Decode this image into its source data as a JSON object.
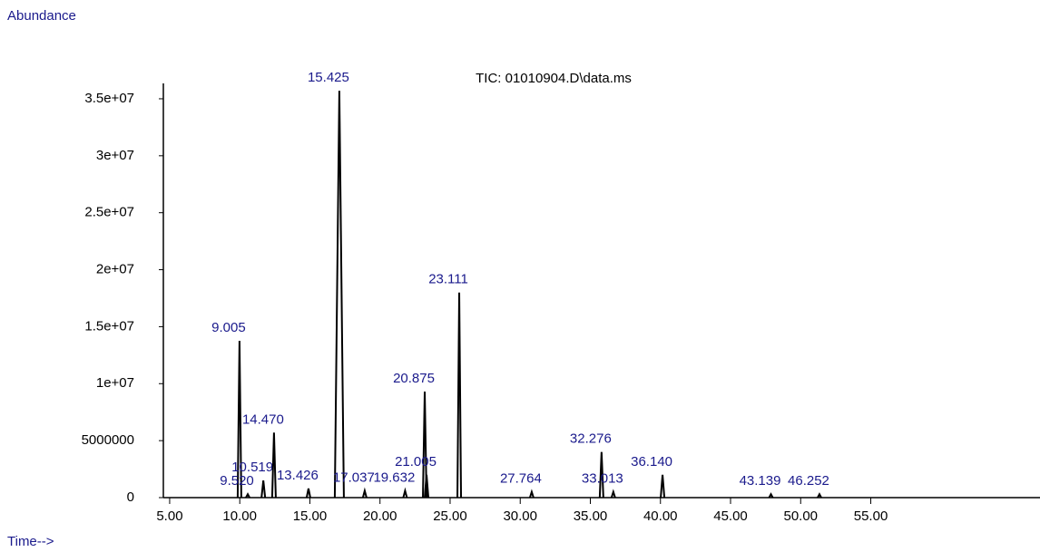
{
  "chart_data": {
    "type": "peaks",
    "title": "TIC: 01010904.D\\data.ms",
    "ylabel": "Abundance",
    "xlabel": "Time-->",
    "color": "#000000",
    "label_color": "#1a1a8c",
    "xlim": [
      4.55,
      66.68
    ],
    "ylim": [
      0,
      36350000
    ],
    "xticks": [
      {
        "value": 5,
        "label": "5.00"
      },
      {
        "value": 10,
        "label": "10.00"
      },
      {
        "value": 15,
        "label": "15.00"
      },
      {
        "value": 20,
        "label": "20.00"
      },
      {
        "value": 25,
        "label": "25.00"
      },
      {
        "value": 30,
        "label": "30.00"
      },
      {
        "value": 35,
        "label": "35.00"
      },
      {
        "value": 40,
        "label": "40.00"
      },
      {
        "value": 45,
        "label": "45.00"
      },
      {
        "value": 50,
        "label": "50.00"
      },
      {
        "value": 55,
        "label": "55.00"
      }
    ],
    "yticks": [
      0,
      5000000,
      {
        "value": 10000000,
        "label": "1e+07"
      },
      {
        "value": 15000000,
        "label": "1.5e+07"
      },
      {
        "value": 20000000,
        "label": "2e+07"
      },
      {
        "value": 25000000,
        "label": "2.5e+07"
      },
      {
        "value": 30000000,
        "label": "3e+07"
      },
      {
        "value": 35000000,
        "label": "3.5e+07"
      }
    ],
    "peak_labels": [
      "9.005",
      "9.520",
      "10.519",
      "13.426",
      "14.470",
      "15.425",
      "17.037",
      "19.632",
      "20.875",
      "21.005",
      "23.111",
      "27.764",
      "32.276",
      "33.013",
      "36.140",
      "43.139",
      "46.252"
    ],
    "x": [
      9.98,
      10.57,
      11.68,
      14.9,
      12.44,
      17.1,
      18.91,
      21.79,
      23.19,
      23.32,
      25.65,
      30.82,
      35.8,
      36.64,
      40.15,
      47.88,
      51.34
    ],
    "values": [
      13760000,
      300000,
      1500000,
      800000,
      5700000,
      35700000,
      600000,
      600000,
      9300000,
      2000000,
      18000000,
      500000,
      4000000,
      500000,
      2000000,
      300000,
      300000
    ]
  }
}
